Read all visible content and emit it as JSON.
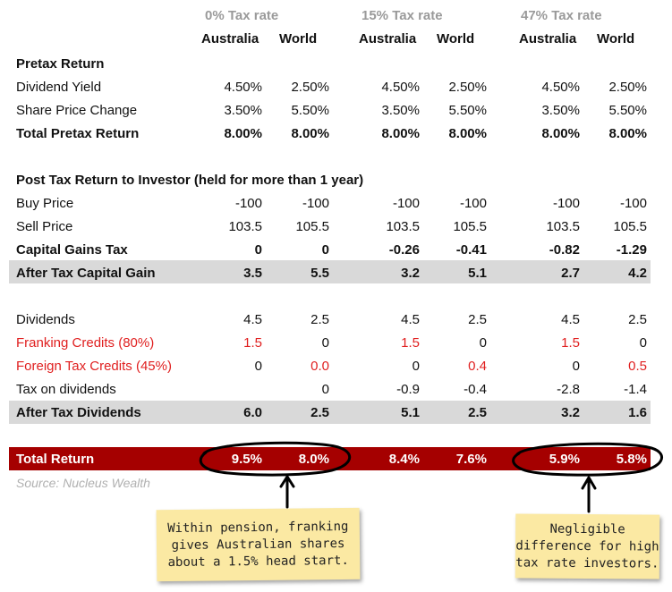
{
  "groups": [
    {
      "label": "0% Tax rate"
    },
    {
      "label": "15% Tax rate"
    },
    {
      "label": "47% Tax rate"
    }
  ],
  "subheaders": [
    "Australia",
    "World",
    "Australia",
    "World",
    "Australia",
    "World"
  ],
  "sections": {
    "pretax": "Pretax Return",
    "posttax": "Post Tax Return to Investor (held for more than 1 year)"
  },
  "rows": {
    "dividend_yield": {
      "label": "Dividend Yield",
      "values": [
        "4.50%",
        "2.50%",
        "4.50%",
        "2.50%",
        "4.50%",
        "2.50%"
      ]
    },
    "share_price_change": {
      "label": "Share Price Change",
      "values": [
        "3.50%",
        "5.50%",
        "3.50%",
        "5.50%",
        "3.50%",
        "5.50%"
      ]
    },
    "total_pretax": {
      "label": "Total Pretax Return",
      "values": [
        "8.00%",
        "8.00%",
        "8.00%",
        "8.00%",
        "8.00%",
        "8.00%"
      ]
    },
    "buy_price": {
      "label": "Buy Price",
      "values": [
        "-100",
        "-100",
        "-100",
        "-100",
        "-100",
        "-100"
      ]
    },
    "sell_price": {
      "label": "Sell Price",
      "values": [
        "103.5",
        "105.5",
        "103.5",
        "105.5",
        "103.5",
        "105.5"
      ]
    },
    "cgt": {
      "label": "Capital Gains Tax",
      "values": [
        "0",
        "0",
        "-0.26",
        "-0.41",
        "-0.82",
        "-1.29"
      ]
    },
    "after_tax_cg": {
      "label": "After Tax Capital Gain",
      "values": [
        "3.5",
        "5.5",
        "3.2",
        "5.1",
        "2.7",
        "4.2"
      ]
    },
    "dividends": {
      "label": "Dividends",
      "values": [
        "4.5",
        "2.5",
        "4.5",
        "2.5",
        "4.5",
        "2.5"
      ]
    },
    "franking": {
      "label": "Franking Credits (80%)",
      "values": [
        "1.5",
        "0",
        "1.5",
        "0",
        "1.5",
        "0"
      ]
    },
    "foreign": {
      "label": "Foreign Tax Credits (45%)",
      "values": [
        "0",
        "0.0",
        "0",
        "0.4",
        "0",
        "0.5"
      ]
    },
    "tax_div": {
      "label": "Tax on dividends",
      "values": [
        "",
        "0",
        "-0.9",
        "-0.4",
        "-2.8",
        "-1.4"
      ]
    },
    "after_tax_div": {
      "label": "After Tax Dividends",
      "values": [
        "6.0",
        "2.5",
        "5.1",
        "2.5",
        "3.2",
        "1.6"
      ]
    },
    "total_return": {
      "label": "Total Return",
      "values": [
        "9.5%",
        "8.0%",
        "8.4%",
        "7.6%",
        "5.9%",
        "5.8%"
      ]
    }
  },
  "source": "Source: Nucleus Wealth",
  "notes": {
    "left": "Within pension, franking\ngives Australian shares\nabout a 1.5% head start.",
    "right": "Negligible\ndifference for high\ntax rate investors."
  },
  "colors": {
    "total_band": "#a50000",
    "highlight_band": "#d9d9d9",
    "red_text": "#e02020",
    "note_bg": "#fbe9a3"
  }
}
